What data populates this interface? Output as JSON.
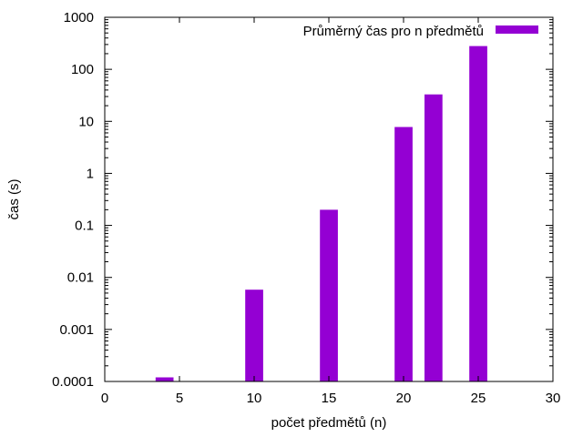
{
  "chart_data": {
    "type": "bar",
    "x": [
      4,
      10,
      15,
      20,
      22,
      25
    ],
    "values": [
      0.00012,
      0.0058,
      0.2,
      7.8,
      33,
      280
    ],
    "series": [
      {
        "name": "Průměrný čas pro n předmětů",
        "color": "#9400d3"
      }
    ],
    "xlabel": "počet předmětů (n)",
    "ylabel": "čas (s)",
    "xlim": [
      0,
      30
    ],
    "ylim": [
      0.0001,
      1000
    ],
    "yscale": "log",
    "grid": false,
    "legend": "top-right",
    "x_ticks": [
      "0",
      "5",
      "10",
      "15",
      "20",
      "25",
      "30"
    ],
    "x_tick_values": [
      0,
      5,
      10,
      15,
      20,
      25,
      30
    ],
    "y_ticks": [
      "0.0001",
      "0.001",
      "0.01",
      "0.1",
      "1",
      "10",
      "100",
      "1000"
    ],
    "y_tick_values": [
      0.0001,
      0.001,
      0.01,
      0.1,
      1,
      10,
      100,
      1000
    ],
    "bar_width": 1.2
  }
}
